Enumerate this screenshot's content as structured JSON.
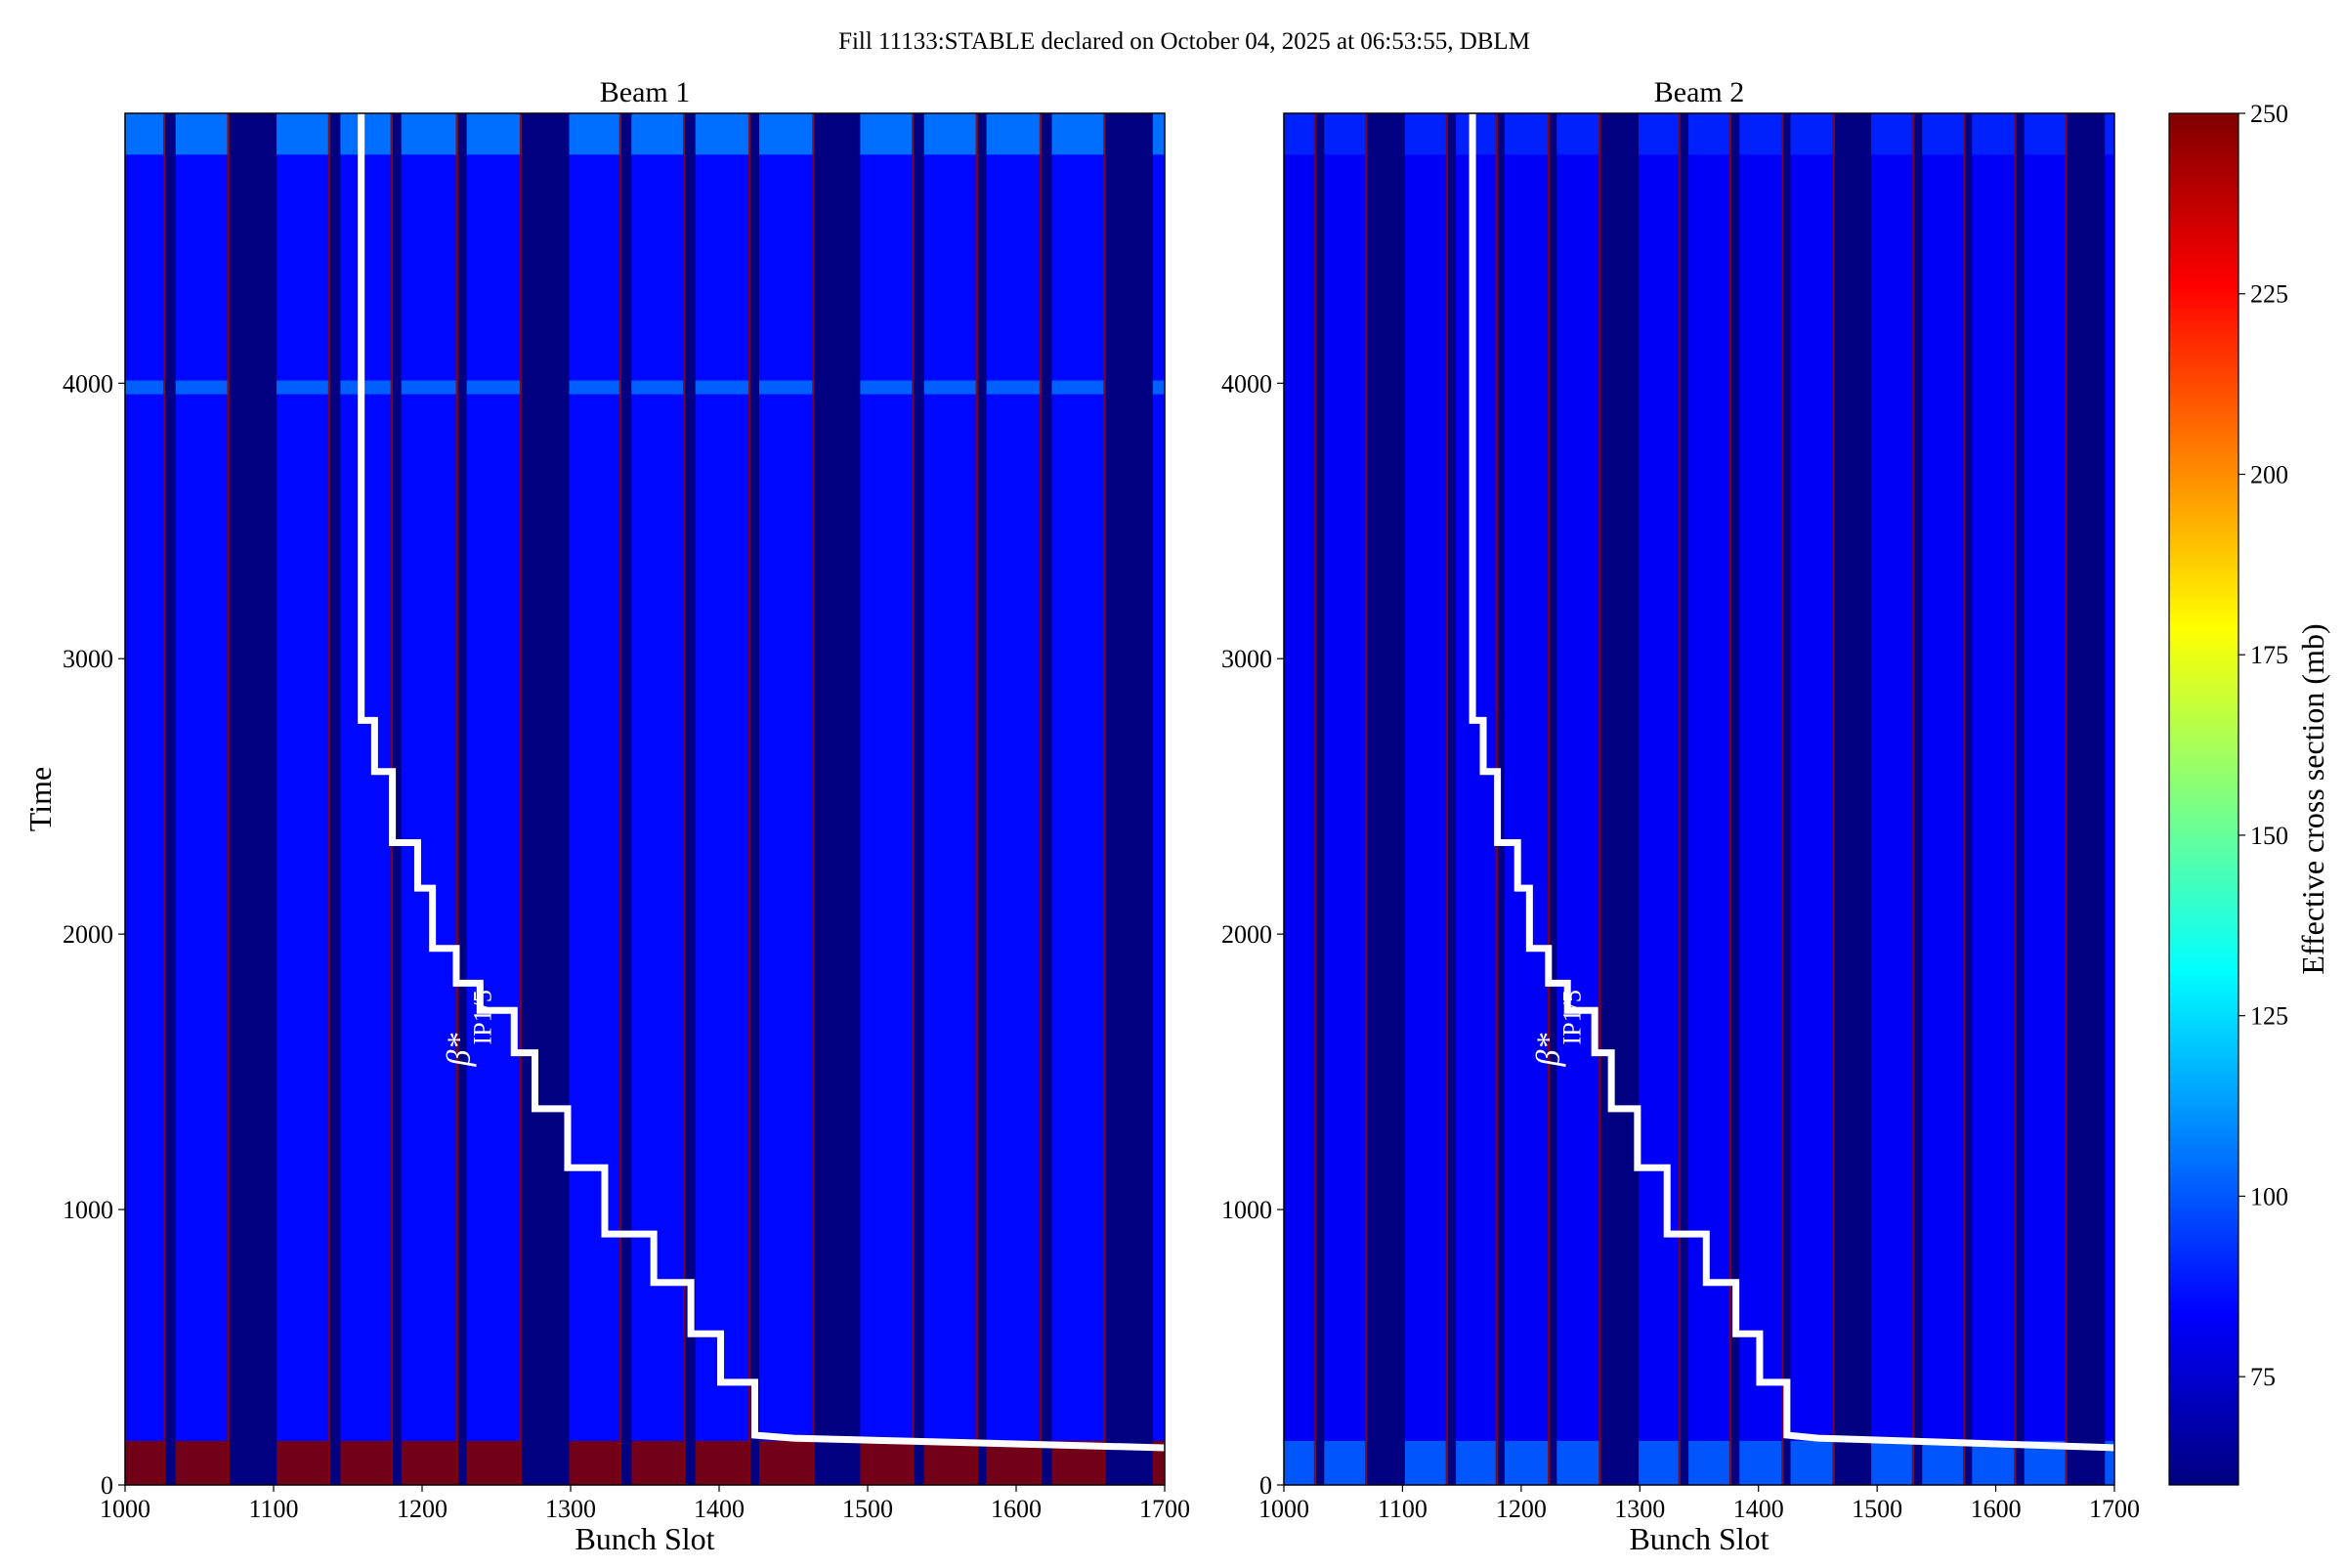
{
  "title": "Fill 11133:STABLE declared on October 04, 2025 at 06:53:55, DBLM",
  "colors": {
    "filled": "#0a1eff",
    "empty": "#00008c",
    "hot": "#8b0000",
    "line": "#ffffff"
  },
  "chart_data": [
    {
      "type": "heatmap",
      "title": "Beam 1",
      "xlabel": "Bunch Slot",
      "ylabel": "Time",
      "xlim": [
        1000,
        1700
      ],
      "ylim": [
        0,
        4980
      ],
      "xticks": [
        "1000",
        "1100",
        "1200",
        "1300",
        "1400",
        "1500",
        "1600",
        "1700"
      ],
      "yticks": [
        "0",
        "1000",
        "2000",
        "3000",
        "4000"
      ],
      "filled_trains": [
        [
          1000,
          1027
        ],
        [
          1034,
          1070
        ],
        [
          1102,
          1138
        ],
        [
          1145,
          1180
        ],
        [
          1186,
          1224
        ],
        [
          1230,
          1267
        ],
        [
          1299,
          1334
        ],
        [
          1341,
          1377
        ],
        [
          1384,
          1421
        ],
        [
          1427,
          1464
        ],
        [
          1495,
          1531
        ],
        [
          1538,
          1574
        ],
        [
          1580,
          1617
        ],
        [
          1624,
          1660
        ],
        [
          1692,
          1700
        ]
      ],
      "typical_value": 85,
      "empty_value": 60,
      "bottom_region": {
        "time": [
          0,
          160
        ],
        "value": 250
      },
      "bright_bands": [
        {
          "time": [
            4830,
            4980
          ],
          "value": 120
        },
        {
          "time": [
            3960,
            4010
          ],
          "value": 115
        }
      ],
      "annotation": {
        "text": "β*",
        "subscript": "IP1/5",
        "x": 1232,
        "y": 1520
      },
      "beta_line": {
        "x": [
          1159,
          1159,
          1168,
          1168,
          1180,
          1180,
          1197,
          1197,
          1207,
          1207,
          1223,
          1223,
          1239,
          1239,
          1262,
          1262,
          1276,
          1276,
          1298,
          1298,
          1323,
          1323,
          1356,
          1356,
          1381,
          1381,
          1401,
          1401,
          1424,
          1424,
          1450,
          1700
        ],
        "y": [
          4980,
          2776,
          2776,
          2590,
          2590,
          2332,
          2332,
          2167,
          2167,
          1948,
          1948,
          1822,
          1822,
          1723,
          1723,
          1569,
          1569,
          1366,
          1366,
          1152,
          1152,
          911,
          911,
          735,
          735,
          549,
          549,
          373,
          373,
          181,
          170,
          135
        ]
      }
    },
    {
      "type": "heatmap",
      "title": "Beam 2",
      "xlabel": "Bunch Slot",
      "ylabel": "",
      "xlim": [
        1000,
        1700
      ],
      "ylim": [
        0,
        4980
      ],
      "xticks": [
        "1000",
        "1100",
        "1200",
        "1300",
        "1400",
        "1500",
        "1600",
        "1700"
      ],
      "yticks": [
        "0",
        "1000",
        "2000",
        "3000",
        "4000"
      ],
      "filled_trains": [
        [
          1000,
          1027
        ],
        [
          1034,
          1070
        ],
        [
          1102,
          1138
        ],
        [
          1145,
          1180
        ],
        [
          1186,
          1224
        ],
        [
          1230,
          1267
        ],
        [
          1299,
          1334
        ],
        [
          1341,
          1377
        ],
        [
          1384,
          1421
        ],
        [
          1427,
          1464
        ],
        [
          1495,
          1531
        ],
        [
          1538,
          1574
        ],
        [
          1580,
          1617
        ],
        [
          1624,
          1660
        ],
        [
          1692,
          1700
        ]
      ],
      "typical_value": 82,
      "empty_value": 60,
      "bottom_region": {
        "time": [
          0,
          160
        ],
        "value": 110
      },
      "bright_bands": [
        {
          "time": [
            4830,
            4980
          ],
          "value": 95
        }
      ],
      "annotation": {
        "text": "β*",
        "subscript": "IP1/5",
        "x": 1232,
        "y": 1520
      },
      "beta_line": {
        "x": [
          1159,
          1159,
          1168,
          1168,
          1180,
          1180,
          1197,
          1197,
          1207,
          1207,
          1223,
          1223,
          1239,
          1239,
          1262,
          1262,
          1276,
          1276,
          1298,
          1298,
          1323,
          1323,
          1356,
          1356,
          1381,
          1381,
          1401,
          1401,
          1424,
          1424,
          1450,
          1700
        ],
        "y": [
          4980,
          2776,
          2776,
          2590,
          2590,
          2332,
          2332,
          2167,
          2167,
          1948,
          1948,
          1822,
          1822,
          1723,
          1723,
          1569,
          1569,
          1366,
          1366,
          1152,
          1152,
          911,
          911,
          735,
          735,
          549,
          549,
          373,
          373,
          181,
          170,
          135
        ]
      }
    },
    {
      "type": "colorbar",
      "label": "Effective cross section (mb)",
      "range": [
        60,
        250
      ],
      "ticks": [
        "75",
        "100",
        "125",
        "150",
        "175",
        "200",
        "225",
        "250"
      ],
      "colormap": "jet"
    }
  ]
}
